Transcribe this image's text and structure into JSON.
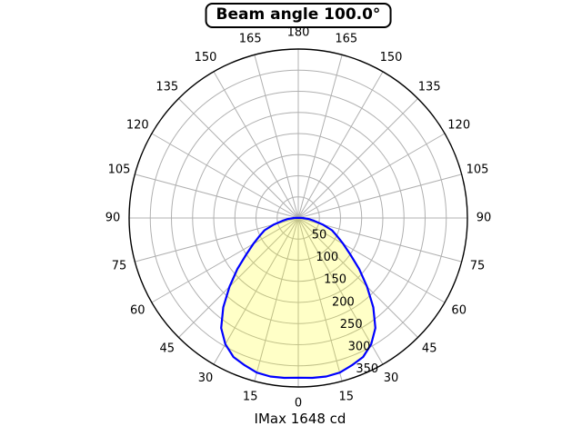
{
  "title": "Beam angle 100.0°",
  "footer": "IMax 1648 cd",
  "chart_data": {
    "type": "polar",
    "subtype": "photometric-intensity-distribution",
    "title": "Beam angle 100.0°",
    "beam_angle_deg": 100.0,
    "imax_cd": 1648,
    "imax_label": "IMax 1648 cd",
    "r_axis": {
      "min": 0,
      "max": 400,
      "ticks": [
        50,
        100,
        150,
        200,
        250,
        300,
        350
      ],
      "tick_labels": [
        "50",
        "100",
        "150",
        "200",
        "250",
        "300",
        "350"
      ]
    },
    "angle_axis": {
      "zero_position": "bottom",
      "tick_step_deg": 15,
      "mirrored_labels": true,
      "tick_labels": [
        "0",
        "15",
        "30",
        "45",
        "60",
        "75",
        "90",
        "105",
        "120",
        "135",
        "150",
        "165",
        "180"
      ]
    },
    "series": {
      "name": "luminous-intensity",
      "symmetric": true,
      "angles_deg_from_nadir": [
        0,
        5,
        10,
        15,
        20,
        25,
        30,
        35,
        40,
        45,
        50,
        55,
        60,
        65,
        70,
        75,
        80,
        85,
        90,
        95,
        100
      ],
      "values": [
        378,
        380,
        381,
        379,
        371,
        363,
        345,
        318,
        276,
        230,
        188,
        150,
        123,
        101,
        85,
        60,
        38,
        24,
        10,
        4,
        1
      ]
    },
    "grid": true,
    "legend": false,
    "colors": {
      "curve": "#0000ff",
      "fill": "#ffff00",
      "fill_opacity": 0.22,
      "grid": "#b0b0b0",
      "outer_circle": "#000000",
      "text": "#000000",
      "background": "#ffffff"
    }
  }
}
